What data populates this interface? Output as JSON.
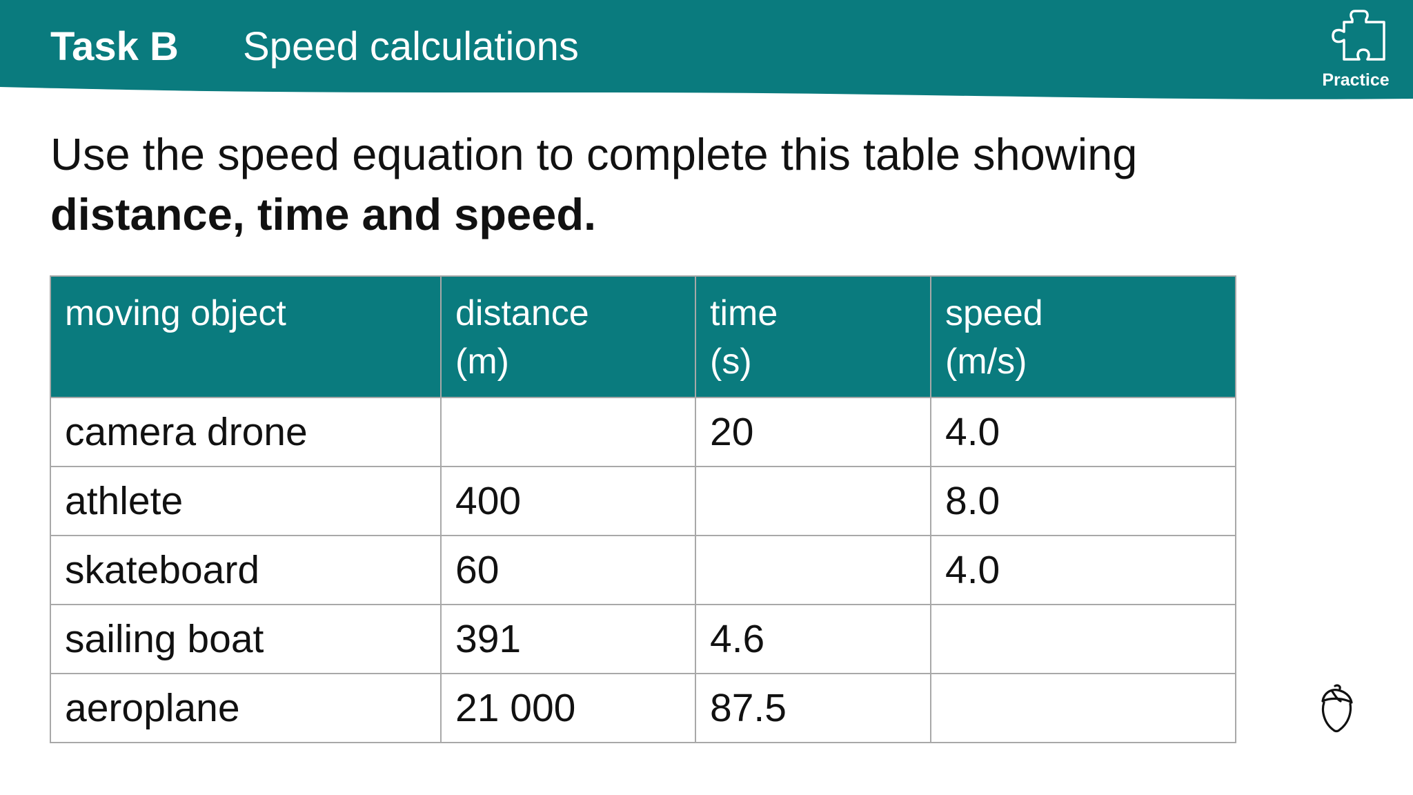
{
  "colors": {
    "brand_teal": "#0a7b7e",
    "header_text": "#ffffff",
    "body_text": "#111111",
    "table_border": "#a8a8a8"
  },
  "header": {
    "task_label": "Task B",
    "title": "Speed calculations",
    "badge": {
      "icon": "puzzle-piece-icon",
      "label": "Practice"
    }
  },
  "instruction": {
    "text": "Use the speed equation to complete this table showing",
    "bold_text": "distance, time and speed."
  },
  "table": {
    "columns": [
      {
        "label": "moving object",
        "unit": ""
      },
      {
        "label": "distance",
        "unit": "(m)"
      },
      {
        "label": "time",
        "unit": "(s)"
      },
      {
        "label": "speed",
        "unit": "(m/s)"
      }
    ],
    "rows": [
      {
        "object": "camera drone",
        "distance": "",
        "time": "20",
        "speed": "4.0"
      },
      {
        "object": "athlete",
        "distance": "400",
        "time": "",
        "speed": "8.0"
      },
      {
        "object": "skateboard",
        "distance": "60",
        "time": "",
        "speed": "4.0"
      },
      {
        "object": "sailing boat",
        "distance": "391",
        "time": "4.6",
        "speed": ""
      },
      {
        "object": "aeroplane",
        "distance": "21 000",
        "time": "87.5",
        "speed": ""
      }
    ]
  },
  "footer": {
    "logo_icon": "acorn-icon"
  }
}
